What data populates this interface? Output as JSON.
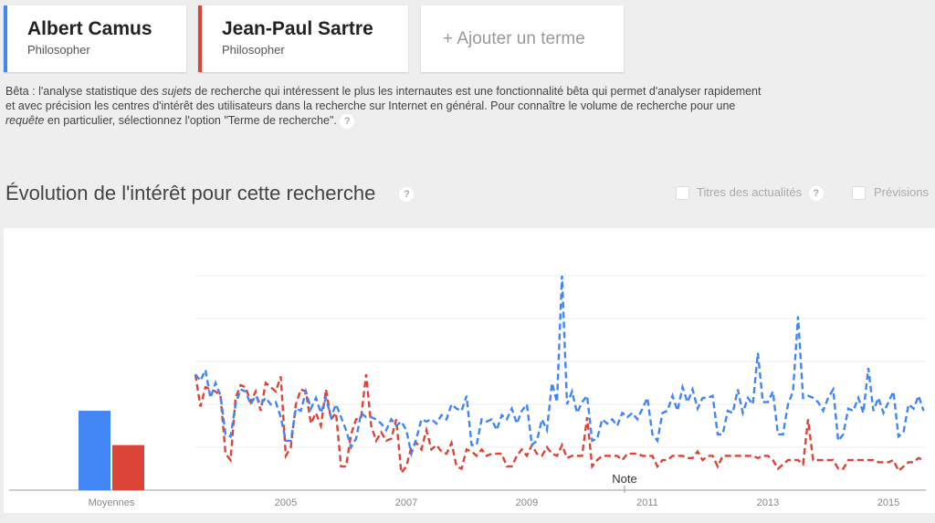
{
  "terms": [
    {
      "name": "Albert Camus",
      "type": "Philosopher",
      "color": "#4285f4"
    },
    {
      "name": "Jean-Paul Sartre",
      "type": "Philosopher",
      "color": "#db4437"
    }
  ],
  "add_term_label": "+ Ajouter un terme",
  "beta": {
    "part1": "Bêta : l'analyse statistique des ",
    "em1": "sujets",
    "part2": " de recherche qui intéressent le plus les internautes est une fonctionnalité bêta qui permet d'analyser rapidement et avec précision les centres d'intérêt des utilisateurs dans la recherche sur Internet en général. Pour connaître le volume de recherche pour une ",
    "em2": "requête",
    "part3": " en particulier, sélectionnez l'option \"Terme de recherche\". "
  },
  "help_icon": "?",
  "section_title": "Évolution de l'intérêt pour cette recherche",
  "options": [
    {
      "label": "Titres des actualités",
      "checked": false
    },
    {
      "label": "Prévisions",
      "checked": false
    }
  ],
  "chart_data": {
    "type": "line",
    "averages": {
      "label": "Moyennes",
      "values": [
        37,
        21
      ]
    },
    "x_ticks": [
      "2005",
      "2007",
      "2009",
      "2011",
      "2013",
      "2015"
    ],
    "annotation": "Note",
    "ylim": [
      0,
      100
    ],
    "grid": true,
    "line_style": "dashed",
    "dates": [
      "2004-01",
      "2004-02",
      "2004-03",
      "2004-04",
      "2004-05",
      "2004-06",
      "2004-07",
      "2004-08",
      "2004-09",
      "2004-10",
      "2004-11",
      "2004-12",
      "2005-01",
      "2005-02",
      "2005-03",
      "2005-04",
      "2005-05",
      "2005-06",
      "2005-07",
      "2005-08",
      "2005-09",
      "2005-10",
      "2005-11",
      "2005-12",
      "2006-01",
      "2006-02",
      "2006-03",
      "2006-04",
      "2006-05",
      "2006-06",
      "2006-07",
      "2006-08",
      "2006-09",
      "2006-10",
      "2006-11",
      "2006-12",
      "2007-01",
      "2007-02",
      "2007-03",
      "2007-04",
      "2007-05",
      "2007-06",
      "2007-07",
      "2007-08",
      "2007-09",
      "2007-10",
      "2007-11",
      "2007-12",
      "2008-01",
      "2008-02",
      "2008-03",
      "2008-04",
      "2008-05",
      "2008-06",
      "2008-07",
      "2008-08",
      "2008-09",
      "2008-10",
      "2008-11",
      "2008-12",
      "2009-01",
      "2009-02",
      "2009-03",
      "2009-04",
      "2009-05",
      "2009-06",
      "2009-07",
      "2009-08",
      "2009-09",
      "2009-10",
      "2009-11",
      "2009-12",
      "2010-01",
      "2010-02",
      "2010-03",
      "2010-04",
      "2010-05",
      "2010-06",
      "2010-07",
      "2010-08",
      "2010-09",
      "2010-10",
      "2010-11",
      "2010-12",
      "2011-01",
      "2011-02",
      "2011-03",
      "2011-04",
      "2011-05",
      "2011-06",
      "2011-07",
      "2011-08",
      "2011-09",
      "2011-10",
      "2011-11",
      "2011-12",
      "2012-01",
      "2012-02",
      "2012-03",
      "2012-04",
      "2012-05",
      "2012-06",
      "2012-07",
      "2012-08",
      "2012-09",
      "2012-10",
      "2012-11",
      "2012-12",
      "2013-01",
      "2013-02",
      "2013-03",
      "2013-04",
      "2013-05",
      "2013-06",
      "2013-07",
      "2013-08",
      "2013-09",
      "2013-10",
      "2013-11",
      "2013-12",
      "2014-01",
      "2014-02",
      "2014-03",
      "2014-04",
      "2014-05",
      "2014-06",
      "2014-07",
      "2014-08",
      "2014-09",
      "2014-10",
      "2014-11",
      "2014-12",
      "2015-01",
      "2015-02",
      "2015-03",
      "2015-04",
      "2015-05",
      "2015-06",
      "2015-07",
      "2015-08",
      "2015-09",
      "2015-10",
      "2015-11",
      "2015-12",
      "2016-01",
      "2016-02"
    ],
    "series": [
      {
        "name": "Albert Camus",
        "color": "#4285f4",
        "values": [
          54,
          51,
          56,
          43,
          50,
          44,
          26,
          25,
          40,
          47,
          46,
          40,
          44,
          40,
          43,
          40,
          41,
          34,
          23,
          23,
          38,
          37,
          46,
          38,
          43,
          36,
          43,
          34,
          40,
          34,
          28,
          20,
          24,
          36,
          34,
          34,
          33,
          31,
          28,
          33,
          30,
          32,
          28,
          17,
          24,
          33,
          32,
          33,
          31,
          35,
          33,
          40,
          38,
          37,
          44,
          21,
          21,
          33,
          32,
          33,
          28,
          35,
          33,
          38,
          31,
          37,
          40,
          21,
          23,
          33,
          28,
          50,
          41,
          100,
          40,
          46,
          36,
          41,
          44,
          23,
          24,
          33,
          31,
          33,
          30,
          36,
          34,
          36,
          33,
          38,
          43,
          26,
          23,
          36,
          37,
          44,
          37,
          48,
          41,
          47,
          38,
          43,
          43,
          44,
          26,
          26,
          37,
          36,
          47,
          36,
          43,
          40,
          64,
          41,
          41,
          46,
          26,
          26,
          40,
          46,
          81,
          43,
          44,
          43,
          41,
          37,
          43,
          47,
          23,
          26,
          38,
          37,
          43,
          36,
          57,
          37,
          43,
          36,
          41,
          46,
          25,
          27,
          40,
          38,
          44,
          37
        ]
      },
      {
        "name": "Jean-Paul Sartre",
        "color": "#db4437",
        "values": [
          54,
          39,
          48,
          47,
          46,
          44,
          17,
          14,
          43,
          49,
          48,
          41,
          46,
          37,
          50,
          48,
          46,
          53,
          16,
          20,
          40,
          47,
          46,
          31,
          36,
          30,
          47,
          33,
          36,
          11,
          11,
          26,
          33,
          34,
          54,
          30,
          23,
          27,
          23,
          24,
          33,
          8,
          11,
          20,
          22,
          19,
          28,
          19,
          21,
          18,
          17,
          22,
          11,
          10,
          19,
          18,
          16,
          19,
          16,
          17,
          17,
          17,
          11,
          11,
          16,
          19,
          16,
          21,
          17,
          16,
          20,
          17,
          16,
          21,
          15,
          16,
          16,
          16,
          34,
          11,
          14,
          16,
          16,
          16,
          16,
          14,
          17,
          17,
          17,
          16,
          16,
          16,
          11,
          14,
          14,
          16,
          16,
          16,
          15,
          15,
          18,
          14,
          16,
          16,
          11,
          16,
          16,
          16,
          16,
          16,
          16,
          16,
          15,
          16,
          16,
          14,
          10,
          12,
          14,
          14,
          14,
          12,
          33,
          14,
          14,
          14,
          14,
          14,
          10,
          10,
          14,
          14,
          14,
          14,
          14,
          14,
          13,
          13,
          13,
          14,
          9,
          11,
          13,
          13,
          15,
          14
        ]
      }
    ]
  }
}
